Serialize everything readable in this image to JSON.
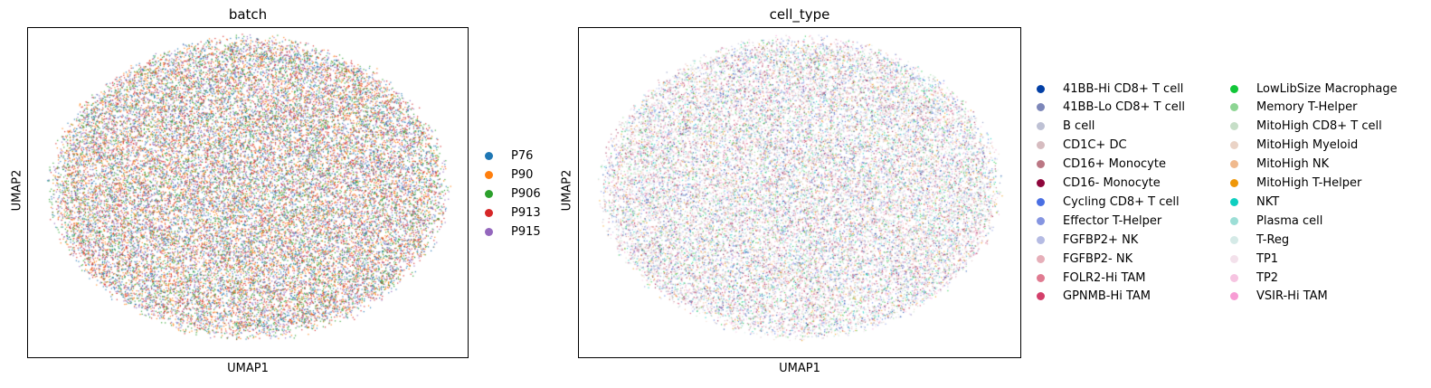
{
  "chart_data": [
    {
      "type": "scatter",
      "title": "batch",
      "xlabel": "UMAP1",
      "ylabel": "UMAP2",
      "grid": false,
      "legend_placement": "right",
      "categories": [
        "P76",
        "P90",
        "P906",
        "P913",
        "P915"
      ],
      "colors": [
        "#1f77b4",
        "#ff7f0e",
        "#2ca02c",
        "#d62728",
        "#9467bd"
      ]
    },
    {
      "type": "scatter",
      "title": "cell_type",
      "xlabel": "UMAP1",
      "ylabel": "UMAP2",
      "grid": false,
      "legend_placement": "right",
      "categories": [
        "41BB-Hi CD8+ T cell",
        "41BB-Lo CD8+ T cell",
        "B cell",
        "CD1C+ DC",
        "CD16+ Monocyte",
        "CD16- Monocyte",
        "Cycling CD8+ T cell",
        "Effector T-Helper",
        "FGFBP2+ NK",
        "FGFBP2- NK",
        "FOLR2-Hi TAM",
        "GPNMB-Hi TAM",
        "LowLibSize Macrophage",
        "Memory T-Helper",
        "MitoHigh CD8+ T cell",
        "MitoHigh Myeloid",
        "MitoHigh NK",
        "MitoHigh T-Helper",
        "NKT",
        "Plasma cell",
        "T-Reg",
        "TP1",
        "TP2",
        "VSIR-Hi TAM"
      ],
      "colors": [
        "#023fa5",
        "#7d87b9",
        "#bec1d4",
        "#d6bcc0",
        "#bb7784",
        "#8e063b",
        "#4a6fe3",
        "#8595e1",
        "#b5bbe3",
        "#e6afb9",
        "#e07b91",
        "#d33f6a",
        "#11c638",
        "#8dd593",
        "#c6dec7",
        "#ead3c6",
        "#f0b98d",
        "#ef9708",
        "#0fcfc0",
        "#9cded6",
        "#d5eae7",
        "#f3e1eb",
        "#f6c4e1",
        "#f79cd4"
      ]
    }
  ]
}
